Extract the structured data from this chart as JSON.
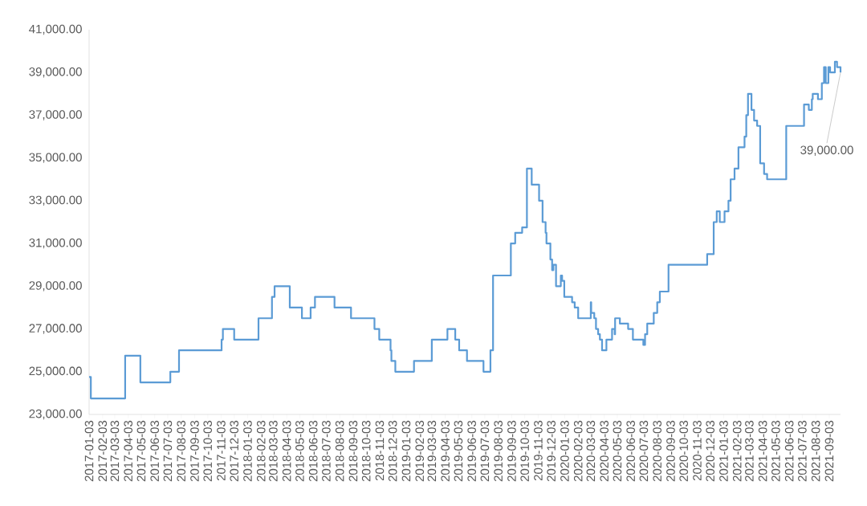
{
  "chart_data": {
    "type": "step",
    "color": "#5b9bd5",
    "x": [
      "2017-01-03",
      "2017-01-07",
      "2017-03-27",
      "2017-05-01",
      "2017-07-09",
      "2017-07-29",
      "2017-11-04",
      "2017-11-07",
      "2017-12-03",
      "2018-01-28",
      "2018-02-28",
      "2018-03-06",
      "2018-04-10",
      "2018-05-08",
      "2018-05-28",
      "2018-06-07",
      "2018-07-22",
      "2018-08-29",
      "2018-10-22",
      "2018-11-02",
      "2018-11-28",
      "2018-11-30",
      "2018-12-09",
      "2019-01-21",
      "2019-03-03",
      "2019-04-08",
      "2019-04-26",
      "2019-05-05",
      "2019-05-23",
      "2019-06-30",
      "2019-07-16",
      "2019-07-22",
      "2019-09-01",
      "2019-09-11",
      "2019-09-27",
      "2019-10-08",
      "2019-10-19",
      "2019-11-05",
      "2019-11-13",
      "2019-11-20",
      "2019-11-22",
      "2019-12-01",
      "2019-12-05",
      "2019-12-08",
      "2019-12-14",
      "2019-12-25",
      "2019-12-28",
      "2020-01-02",
      "2020-01-20",
      "2020-01-26",
      "2020-02-03",
      "2020-03-03",
      "2020-03-04",
      "2020-03-11",
      "2020-03-15",
      "2020-03-20",
      "2020-03-24",
      "2020-03-29",
      "2020-04-08",
      "2020-04-21",
      "2020-04-27",
      "2020-04-28",
      "2020-05-09",
      "2020-05-28",
      "2020-06-08",
      "2020-07-02",
      "2020-07-06",
      "2020-07-11",
      "2020-07-26",
      "2020-08-03",
      "2020-08-09",
      "2020-08-29",
      "2020-11-26",
      "2020-12-11",
      "2020-12-18",
      "2020-12-25",
      "2021-01-05",
      "2021-01-14",
      "2021-01-19",
      "2021-01-28",
      "2021-02-06",
      "2021-02-20",
      "2021-02-24",
      "2021-02-28",
      "2021-03-08",
      "2021-03-14",
      "2021-03-21",
      "2021-03-28",
      "2021-04-06",
      "2021-04-13",
      "2021-05-27",
      "2021-07-07",
      "2021-07-18",
      "2021-07-25",
      "2021-07-27",
      "2021-08-08",
      "2021-08-17",
      "2021-08-22",
      "2021-08-26",
      "2021-09-01",
      "2021-09-05",
      "2021-09-16",
      "2021-09-21",
      "2021-09-29"
    ],
    "values": [
      24750,
      23750,
      25750,
      24500,
      25000,
      26000,
      26500,
      27000,
      26500,
      27500,
      28500,
      29000,
      28000,
      27500,
      28000,
      28500,
      28000,
      27500,
      27000,
      26500,
      26000,
      25500,
      25000,
      25500,
      26500,
      27000,
      26500,
      26000,
      25500,
      25000,
      26000,
      29500,
      31000,
      31500,
      31750,
      34500,
      33750,
      33000,
      32000,
      31500,
      31000,
      30250,
      29750,
      30000,
      29000,
      29500,
      29250,
      28500,
      28250,
      28000,
      27500,
      28250,
      27750,
      27500,
      27000,
      26750,
      26500,
      26000,
      26500,
      27000,
      26750,
      27500,
      27250,
      27000,
      26500,
      26250,
      26750,
      27250,
      27750,
      28250,
      28750,
      30000,
      30500,
      32000,
      32500,
      32000,
      32500,
      33000,
      34000,
      34500,
      35500,
      36000,
      37000,
      38000,
      37250,
      36750,
      36500,
      34750,
      34250,
      34000,
      36500,
      37500,
      37250,
      37750,
      38000,
      37750,
      38500,
      39250,
      38500,
      39250,
      39000,
      39500,
      39250,
      39000
    ],
    "xlim": [
      "2017-01-03",
      "2021-09-29"
    ],
    "xticks": [
      "2017-01-03",
      "2017-02-03",
      "2017-03-03",
      "2017-04-03",
      "2017-05-03",
      "2017-06-03",
      "2017-07-03",
      "2017-08-03",
      "2017-09-03",
      "2017-10-03",
      "2017-11-03",
      "2017-12-03",
      "2018-01-03",
      "2018-02-03",
      "2018-03-03",
      "2018-04-03",
      "2018-05-03",
      "2018-06-03",
      "2018-07-03",
      "2018-08-03",
      "2018-09-03",
      "2018-10-03",
      "2018-11-03",
      "2018-12-03",
      "2019-01-03",
      "2019-02-03",
      "2019-03-03",
      "2019-04-03",
      "2019-05-03",
      "2019-06-03",
      "2019-07-03",
      "2019-08-03",
      "2019-09-03",
      "2019-10-03",
      "2019-11-03",
      "2019-12-03",
      "2020-01-03",
      "2020-02-03",
      "2020-03-03",
      "2020-04-03",
      "2020-05-03",
      "2020-06-03",
      "2020-07-03",
      "2020-08-03",
      "2020-09-03",
      "2020-10-03",
      "2020-11-03",
      "2020-12-03",
      "2021-01-03",
      "2021-02-03",
      "2021-03-03",
      "2021-04-03",
      "2021-05-03",
      "2021-06-03",
      "2021-07-03",
      "2021-08-03",
      "2021-09-03"
    ],
    "ylim": [
      23000,
      41000
    ],
    "yticks": [
      {
        "value": 23000,
        "label": "23,000.00"
      },
      {
        "value": 25000,
        "label": "25,000.00"
      },
      {
        "value": 27000,
        "label": "27,000.00"
      },
      {
        "value": 29000,
        "label": "29,000.00"
      },
      {
        "value": 31000,
        "label": "31,000.00"
      },
      {
        "value": 33000,
        "label": "33,000.00"
      },
      {
        "value": 35000,
        "label": "35,000.00"
      },
      {
        "value": 37000,
        "label": "37,000.00"
      },
      {
        "value": 39000,
        "label": "39,000.00"
      },
      {
        "value": 41000,
        "label": "41,000.00"
      }
    ],
    "annotations": [
      {
        "text": "39,000.00",
        "x": "2021-09-29",
        "y": 39000
      }
    ]
  }
}
